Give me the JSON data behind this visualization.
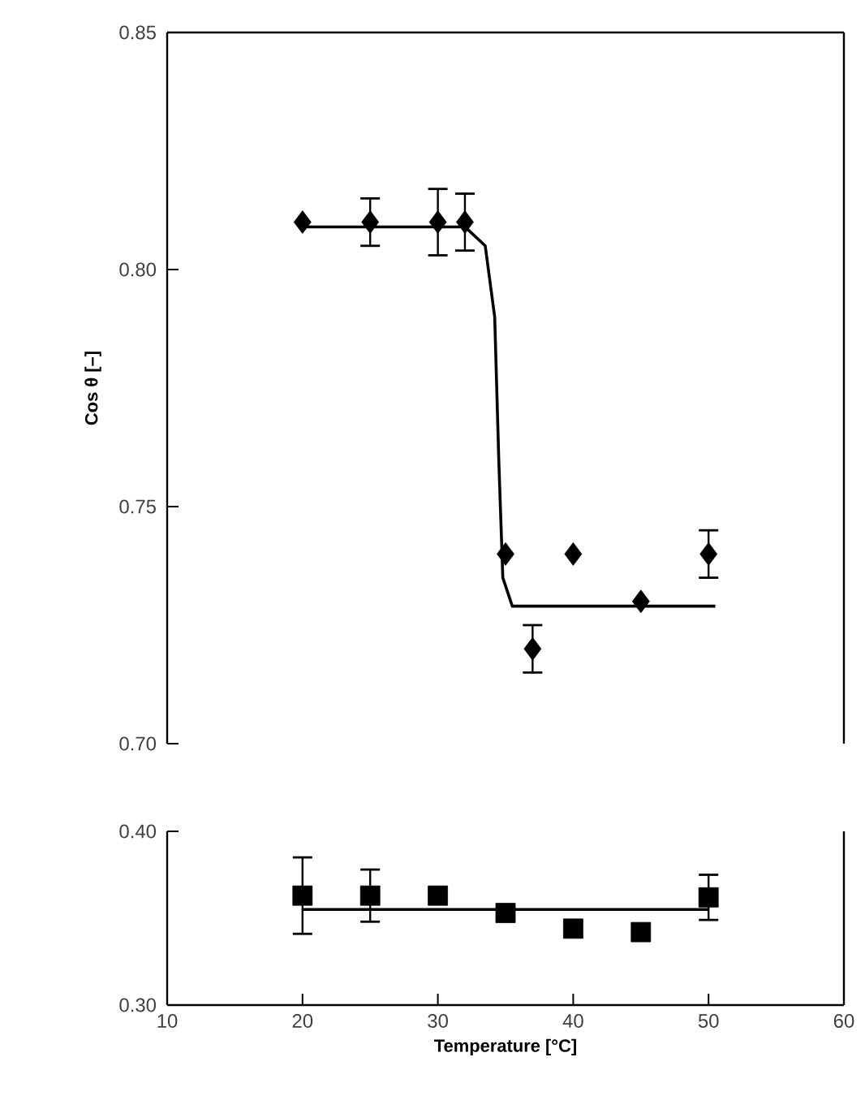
{
  "chart_data": [
    {
      "type": "scatter",
      "ylabel": "Cos θ [–]",
      "xlim": [
        10,
        60
      ],
      "ylim": [
        0.7,
        0.85
      ],
      "yticks": [
        {
          "value": 0.7,
          "label": "0.70"
        },
        0.75,
        {
          "value": 0.8,
          "label": "0.80"
        },
        0.85
      ],
      "tick_labels": "y",
      "series": [
        {
          "marker": "diamond",
          "color": "#000000",
          "x": [
            20,
            25,
            30,
            32,
            35,
            37,
            40,
            45,
            50
          ],
          "values": [
            0.81,
            0.81,
            0.81,
            0.81,
            0.74,
            0.72,
            0.74,
            0.73,
            0.74
          ],
          "errors": [
            null,
            0.005,
            0.007,
            0.006,
            null,
            0.005,
            null,
            null,
            0.005
          ]
        },
        {
          "type": "line",
          "marker": "none",
          "color": "#000000",
          "x": [
            20,
            32,
            33.5,
            34.2,
            34.5,
            34.8,
            35.5,
            50.5
          ],
          "values": [
            0.809,
            0.809,
            0.805,
            0.79,
            0.76,
            0.735,
            0.729,
            0.729
          ]
        }
      ]
    },
    {
      "type": "scatter",
      "xlabel": "Temperature [°C]",
      "xlim": [
        10,
        60
      ],
      "xticks": [
        10,
        20,
        30,
        40,
        50,
        60
      ],
      "ylim": [
        0.3,
        0.4
      ],
      "yticks": [
        {
          "value": 0.3,
          "label": "0.30"
        },
        {
          "value": 0.4,
          "label": "0.40"
        }
      ],
      "series": [
        {
          "marker": "square",
          "color": "#000000",
          "x": [
            20,
            25,
            30,
            35,
            40,
            45,
            50
          ],
          "values": [
            0.363,
            0.363,
            0.363,
            0.353,
            0.344,
            0.342,
            0.362
          ],
          "errors": [
            0.022,
            0.015,
            null,
            null,
            null,
            null,
            0.013
          ]
        },
        {
          "type": "line",
          "marker": "none",
          "color": "#000000",
          "x": [
            20,
            50
          ],
          "values": [
            0.355,
            0.355
          ]
        }
      ]
    }
  ]
}
